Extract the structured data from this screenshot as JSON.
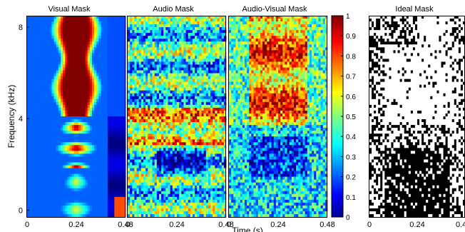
{
  "chart_data": {
    "type": "heatmap",
    "ylabel": "Frequency (kHz)",
    "xlabel": "Time (s)",
    "y_ticks": [
      "8",
      "4",
      "0"
    ],
    "y_tick_values": [
      8,
      4,
      0
    ],
    "ylim": [
      -0.3,
      8.5
    ],
    "x_ticks": [
      "0",
      "0.24",
      "0.48"
    ],
    "x_tick_values": [
      0,
      0.24,
      0.48
    ],
    "xlim": [
      0,
      0.48
    ],
    "ideal_x_ticks": [
      "0",
      "0.24",
      "0.4"
    ],
    "colorbar": {
      "range": [
        0,
        1
      ],
      "ticks": [
        "0",
        "0.1",
        "0.2",
        "0.3",
        "0.4",
        "0.5",
        "0.6",
        "0.7",
        "0.8",
        "0.9",
        "1"
      ],
      "tick_values": [
        0,
        0.1,
        0.2,
        0.3,
        0.4,
        0.5,
        0.6,
        0.7,
        0.8,
        0.9,
        1
      ],
      "colormap": "jet"
    },
    "panels": [
      {
        "title": "Visual Mask",
        "colormap": "jet",
        "pattern": "visual"
      },
      {
        "title": "Audio Mask",
        "colormap": "jet",
        "pattern": "audio"
      },
      {
        "title": "Audio-Visual Mask",
        "colormap": "jet",
        "pattern": "audiovisual"
      },
      {
        "title": "Ideal Mask",
        "colormap": "binary",
        "pattern": "ideal"
      }
    ]
  }
}
